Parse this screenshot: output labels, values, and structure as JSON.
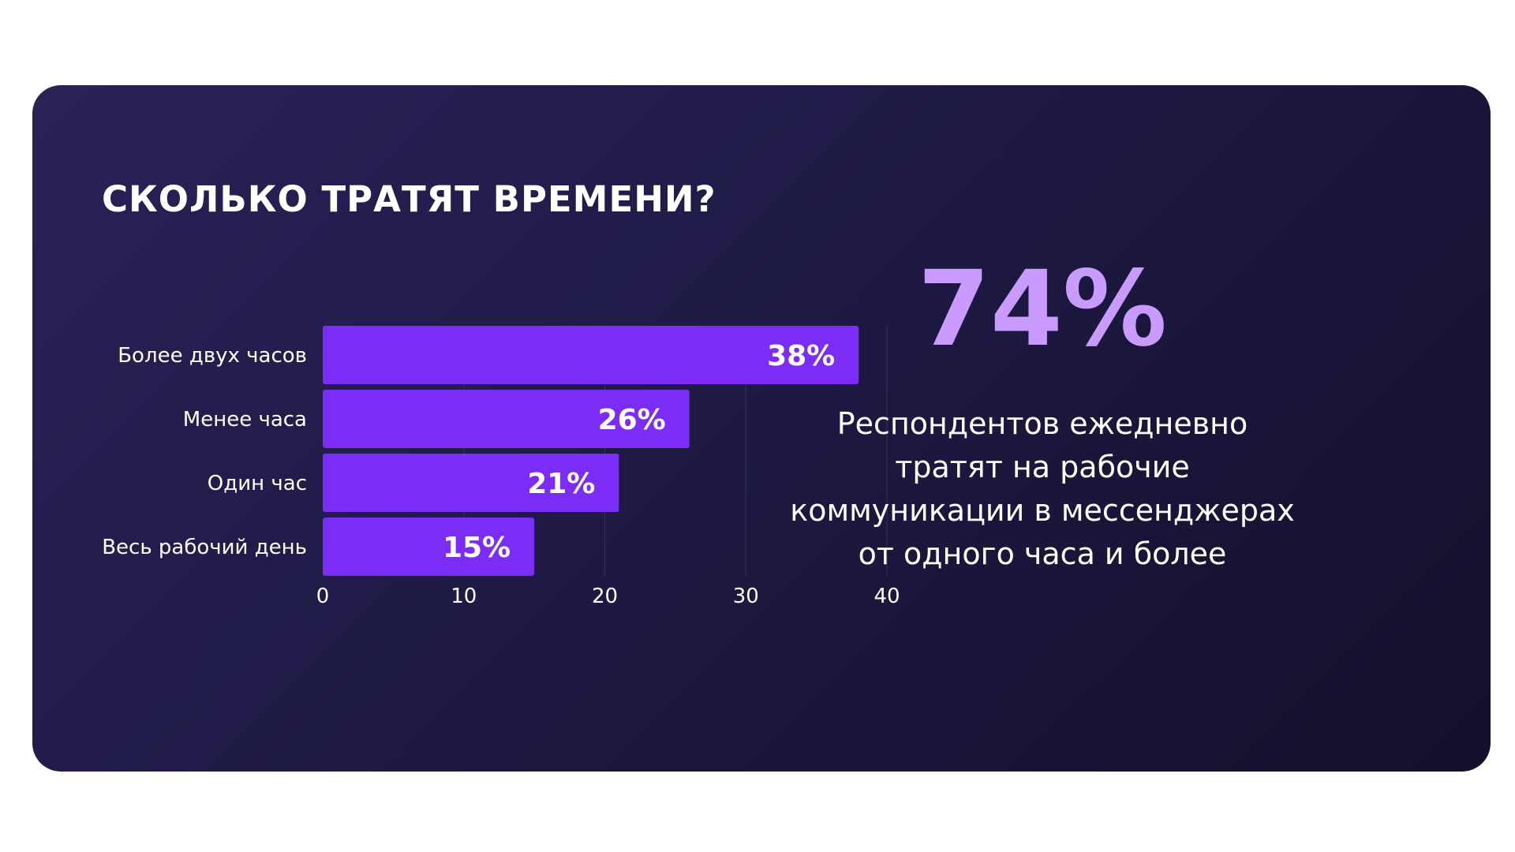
{
  "card": {
    "title": "СКОЛЬКО ТРАТЯТ ВРЕМЕНИ?"
  },
  "stat": {
    "value": "74%",
    "caption_lines": [
      "Респондентов ежедневно",
      "тратят на рабочие",
      "коммуникации в мессенджерах",
      "от одного часа и более"
    ]
  },
  "colors": {
    "background_start": "#2a2258",
    "background_end": "#140f2a",
    "bar": "#7b2cf5",
    "accent": "#c99bff",
    "text": "#ffffff"
  },
  "chart_data": {
    "type": "bar",
    "orientation": "horizontal",
    "categories": [
      "Более двух часов",
      "Менее часа",
      "Один час",
      "Весь рабочий день"
    ],
    "values": [
      38,
      26,
      21,
      15
    ],
    "value_labels": [
      "38%",
      "26%",
      "21%",
      "15%"
    ],
    "xlim": [
      0,
      40
    ],
    "xticks": [
      0,
      10,
      20,
      30,
      40
    ],
    "grid": true,
    "title": "СКОЛЬКО ТРАТЯТ ВРЕМЕНИ?"
  }
}
